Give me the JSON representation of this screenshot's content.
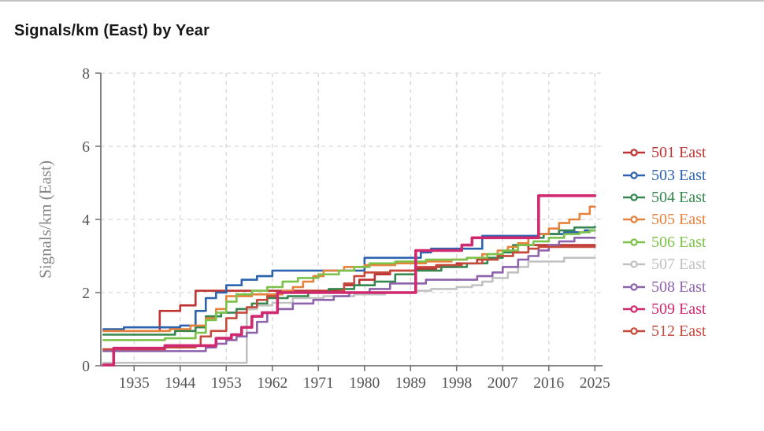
{
  "page": {
    "title": "Signals/km (East) by Year"
  },
  "chart_data": {
    "type": "line",
    "step_shape": "hv",
    "title": "Signals/km (East) by Year",
    "xlabel": "",
    "ylabel": "Signals/km (East)",
    "xlim": [
      1928.5,
      2026.5
    ],
    "ylim": [
      0,
      8
    ],
    "x_ticks": [
      1935,
      1944,
      1953,
      1962,
      1971,
      1980,
      1989,
      1998,
      2007,
      2016,
      2025
    ],
    "y_ticks": [
      0,
      2,
      4,
      6,
      8
    ],
    "grid": "dashed",
    "grid_color": "#d6d6d6",
    "spine_color": "#757575",
    "tick_label_color": "#555555",
    "legend_position": "right",
    "series": [
      {
        "name": "501 East",
        "color": "#bd3432",
        "width": 2.6,
        "z": 1,
        "points": [
          [
            1929,
            0.95
          ],
          [
            1940,
            1.5
          ],
          [
            1944,
            1.65
          ],
          [
            1947,
            2.05
          ],
          [
            1976,
            2.2
          ],
          [
            1979,
            2.35
          ],
          [
            1982,
            2.5
          ],
          [
            1985,
            2.6
          ],
          [
            1990,
            2.65
          ],
          [
            1994,
            2.7
          ],
          [
            1998,
            2.8
          ],
          [
            2002,
            2.9
          ],
          [
            2006,
            3.0
          ],
          [
            2009,
            3.1
          ],
          [
            2012,
            3.3
          ],
          [
            2025,
            3.3
          ]
        ]
      },
      {
        "name": "503 East",
        "color": "#2d63ae",
        "width": 2.6,
        "z": 1,
        "points": [
          [
            1929,
            1.0
          ],
          [
            1933,
            1.05
          ],
          [
            1944,
            1.1
          ],
          [
            1947,
            1.5
          ],
          [
            1949,
            1.85
          ],
          [
            1951,
            2.0
          ],
          [
            1953,
            2.2
          ],
          [
            1956,
            2.35
          ],
          [
            1959,
            2.45
          ],
          [
            1962,
            2.6
          ],
          [
            1980,
            2.95
          ],
          [
            1991,
            3.1
          ],
          [
            1993,
            3.2
          ],
          [
            2003,
            3.55
          ],
          [
            2014,
            3.6
          ],
          [
            2019,
            3.65
          ],
          [
            2023,
            3.7
          ],
          [
            2025,
            3.7
          ]
        ]
      },
      {
        "name": "504 East",
        "color": "#35874f",
        "width": 2.6,
        "z": 1,
        "points": [
          [
            1929,
            0.85
          ],
          [
            1943,
            0.95
          ],
          [
            1947,
            1.05
          ],
          [
            1949,
            1.35
          ],
          [
            1952,
            1.45
          ],
          [
            1955,
            1.55
          ],
          [
            1958,
            1.7
          ],
          [
            1961,
            1.85
          ],
          [
            1965,
            1.9
          ],
          [
            1969,
            2.0
          ],
          [
            1973,
            2.1
          ],
          [
            1978,
            2.2
          ],
          [
            1982,
            2.3
          ],
          [
            1986,
            2.5
          ],
          [
            1990,
            2.6
          ],
          [
            1995,
            2.7
          ],
          [
            2000,
            2.8
          ],
          [
            2004,
            2.95
          ],
          [
            2007,
            3.1
          ],
          [
            2009,
            3.3
          ],
          [
            2012,
            3.5
          ],
          [
            2015,
            3.6
          ],
          [
            2018,
            3.7
          ],
          [
            2021,
            3.78
          ],
          [
            2025,
            3.8
          ]
        ]
      },
      {
        "name": "505 East",
        "color": "#e5823c",
        "width": 2.6,
        "z": 1,
        "points": [
          [
            1929,
            0.95
          ],
          [
            1942,
            1.0
          ],
          [
            1946,
            1.1
          ],
          [
            1949,
            1.3
          ],
          [
            1951,
            1.55
          ],
          [
            1953,
            1.9
          ],
          [
            1958,
            1.95
          ],
          [
            1964,
            2.05
          ],
          [
            1966,
            2.15
          ],
          [
            1968,
            2.3
          ],
          [
            1970,
            2.45
          ],
          [
            1972,
            2.6
          ],
          [
            1976,
            2.7
          ],
          [
            1980,
            2.75
          ],
          [
            1986,
            2.8
          ],
          [
            1992,
            2.85
          ],
          [
            1997,
            2.9
          ],
          [
            2000,
            2.95
          ],
          [
            2003,
            3.05
          ],
          [
            2006,
            3.15
          ],
          [
            2008,
            3.25
          ],
          [
            2010,
            3.35
          ],
          [
            2012,
            3.5
          ],
          [
            2014,
            3.6
          ],
          [
            2016,
            3.75
          ],
          [
            2018,
            3.9
          ],
          [
            2020,
            4.0
          ],
          [
            2022,
            4.15
          ],
          [
            2024,
            4.35
          ],
          [
            2025,
            4.35
          ]
        ]
      },
      {
        "name": "506 East",
        "color": "#7cc24a",
        "width": 2.6,
        "z": 1,
        "points": [
          [
            1929,
            0.7
          ],
          [
            1941,
            0.75
          ],
          [
            1947,
            0.9
          ],
          [
            1949,
            1.25
          ],
          [
            1951,
            1.45
          ],
          [
            1953,
            1.75
          ],
          [
            1955,
            1.95
          ],
          [
            1958,
            2.05
          ],
          [
            1961,
            2.15
          ],
          [
            1964,
            2.3
          ],
          [
            1967,
            2.4
          ],
          [
            1971,
            2.5
          ],
          [
            1975,
            2.6
          ],
          [
            1978,
            2.7
          ],
          [
            1981,
            2.8
          ],
          [
            1986,
            2.85
          ],
          [
            1992,
            2.9
          ],
          [
            2000,
            2.95
          ],
          [
            2004,
            3.05
          ],
          [
            2007,
            3.15
          ],
          [
            2010,
            3.3
          ],
          [
            2013,
            3.4
          ],
          [
            2016,
            3.5
          ],
          [
            2019,
            3.6
          ],
          [
            2022,
            3.65
          ],
          [
            2024,
            3.7
          ],
          [
            2025,
            3.7
          ]
        ]
      },
      {
        "name": "507 East",
        "color": "#c2c2c2",
        "width": 2.6,
        "z": 1,
        "points": [
          [
            1929,
            0.08
          ],
          [
            1957,
            1.55
          ],
          [
            1959,
            1.65
          ],
          [
            1962,
            1.72
          ],
          [
            1966,
            1.85
          ],
          [
            1972,
            1.9
          ],
          [
            1978,
            1.95
          ],
          [
            1984,
            2.0
          ],
          [
            1990,
            2.05
          ],
          [
            1993,
            2.1
          ],
          [
            1998,
            2.15
          ],
          [
            2001,
            2.2
          ],
          [
            2003,
            2.3
          ],
          [
            2005,
            2.4
          ],
          [
            2008,
            2.55
          ],
          [
            2010,
            2.7
          ],
          [
            2012,
            2.85
          ],
          [
            2019,
            2.95
          ],
          [
            2025,
            2.95
          ]
        ]
      },
      {
        "name": "508 East",
        "color": "#8d63ac",
        "width": 2.6,
        "z": 1,
        "points": [
          [
            1929,
            0.4
          ],
          [
            1949,
            0.5
          ],
          [
            1951,
            0.6
          ],
          [
            1953,
            0.7
          ],
          [
            1955,
            0.8
          ],
          [
            1957,
            0.9
          ],
          [
            1959,
            1.2
          ],
          [
            1961,
            1.45
          ],
          [
            1963,
            1.55
          ],
          [
            1966,
            1.7
          ],
          [
            1970,
            1.8
          ],
          [
            1974,
            1.9
          ],
          [
            1977,
            2.0
          ],
          [
            1981,
            2.1
          ],
          [
            1985,
            2.25
          ],
          [
            1992,
            2.35
          ],
          [
            2002,
            2.45
          ],
          [
            2005,
            2.55
          ],
          [
            2007,
            2.7
          ],
          [
            2010,
            2.9
          ],
          [
            2012,
            3.0
          ],
          [
            2014,
            3.15
          ],
          [
            2016,
            3.3
          ],
          [
            2018,
            3.4
          ],
          [
            2021,
            3.5
          ],
          [
            2025,
            3.5
          ]
        ]
      },
      {
        "name": "509 East",
        "color": "#cf2a70",
        "width": 3.6,
        "z": 2,
        "points": [
          [
            1929,
            0.02
          ],
          [
            1931,
            0.48
          ],
          [
            1941,
            0.55
          ],
          [
            1951,
            0.75
          ],
          [
            1954,
            0.85
          ],
          [
            1956,
            1.05
          ],
          [
            1958,
            1.35
          ],
          [
            1960,
            1.45
          ],
          [
            1963,
            2.0
          ],
          [
            1990,
            3.15
          ],
          [
            1999,
            3.3
          ],
          [
            2001,
            3.5
          ],
          [
            2014,
            4.65
          ],
          [
            2025,
            4.65
          ]
        ]
      },
      {
        "name": "512 East",
        "color": "#c54a3c",
        "width": 2.6,
        "z": 1,
        "points": [
          [
            1929,
            0.45
          ],
          [
            1941,
            0.5
          ],
          [
            1947,
            0.55
          ],
          [
            1948,
            0.8
          ],
          [
            1950,
            0.95
          ],
          [
            1953,
            1.3
          ],
          [
            1955,
            1.45
          ],
          [
            1957,
            1.6
          ],
          [
            1959,
            1.8
          ],
          [
            1961,
            1.9
          ],
          [
            1963,
            2.0
          ],
          [
            1975,
            2.05
          ],
          [
            1976,
            2.25
          ],
          [
            1978,
            2.45
          ],
          [
            1980,
            2.55
          ],
          [
            1985,
            2.6
          ],
          [
            1990,
            2.7
          ],
          [
            1994,
            2.75
          ],
          [
            1999,
            2.8
          ],
          [
            2003,
            2.9
          ],
          [
            2006,
            3.0
          ],
          [
            2009,
            3.1
          ],
          [
            2012,
            3.2
          ],
          [
            2014,
            3.25
          ],
          [
            2025,
            3.25
          ]
        ]
      }
    ]
  }
}
